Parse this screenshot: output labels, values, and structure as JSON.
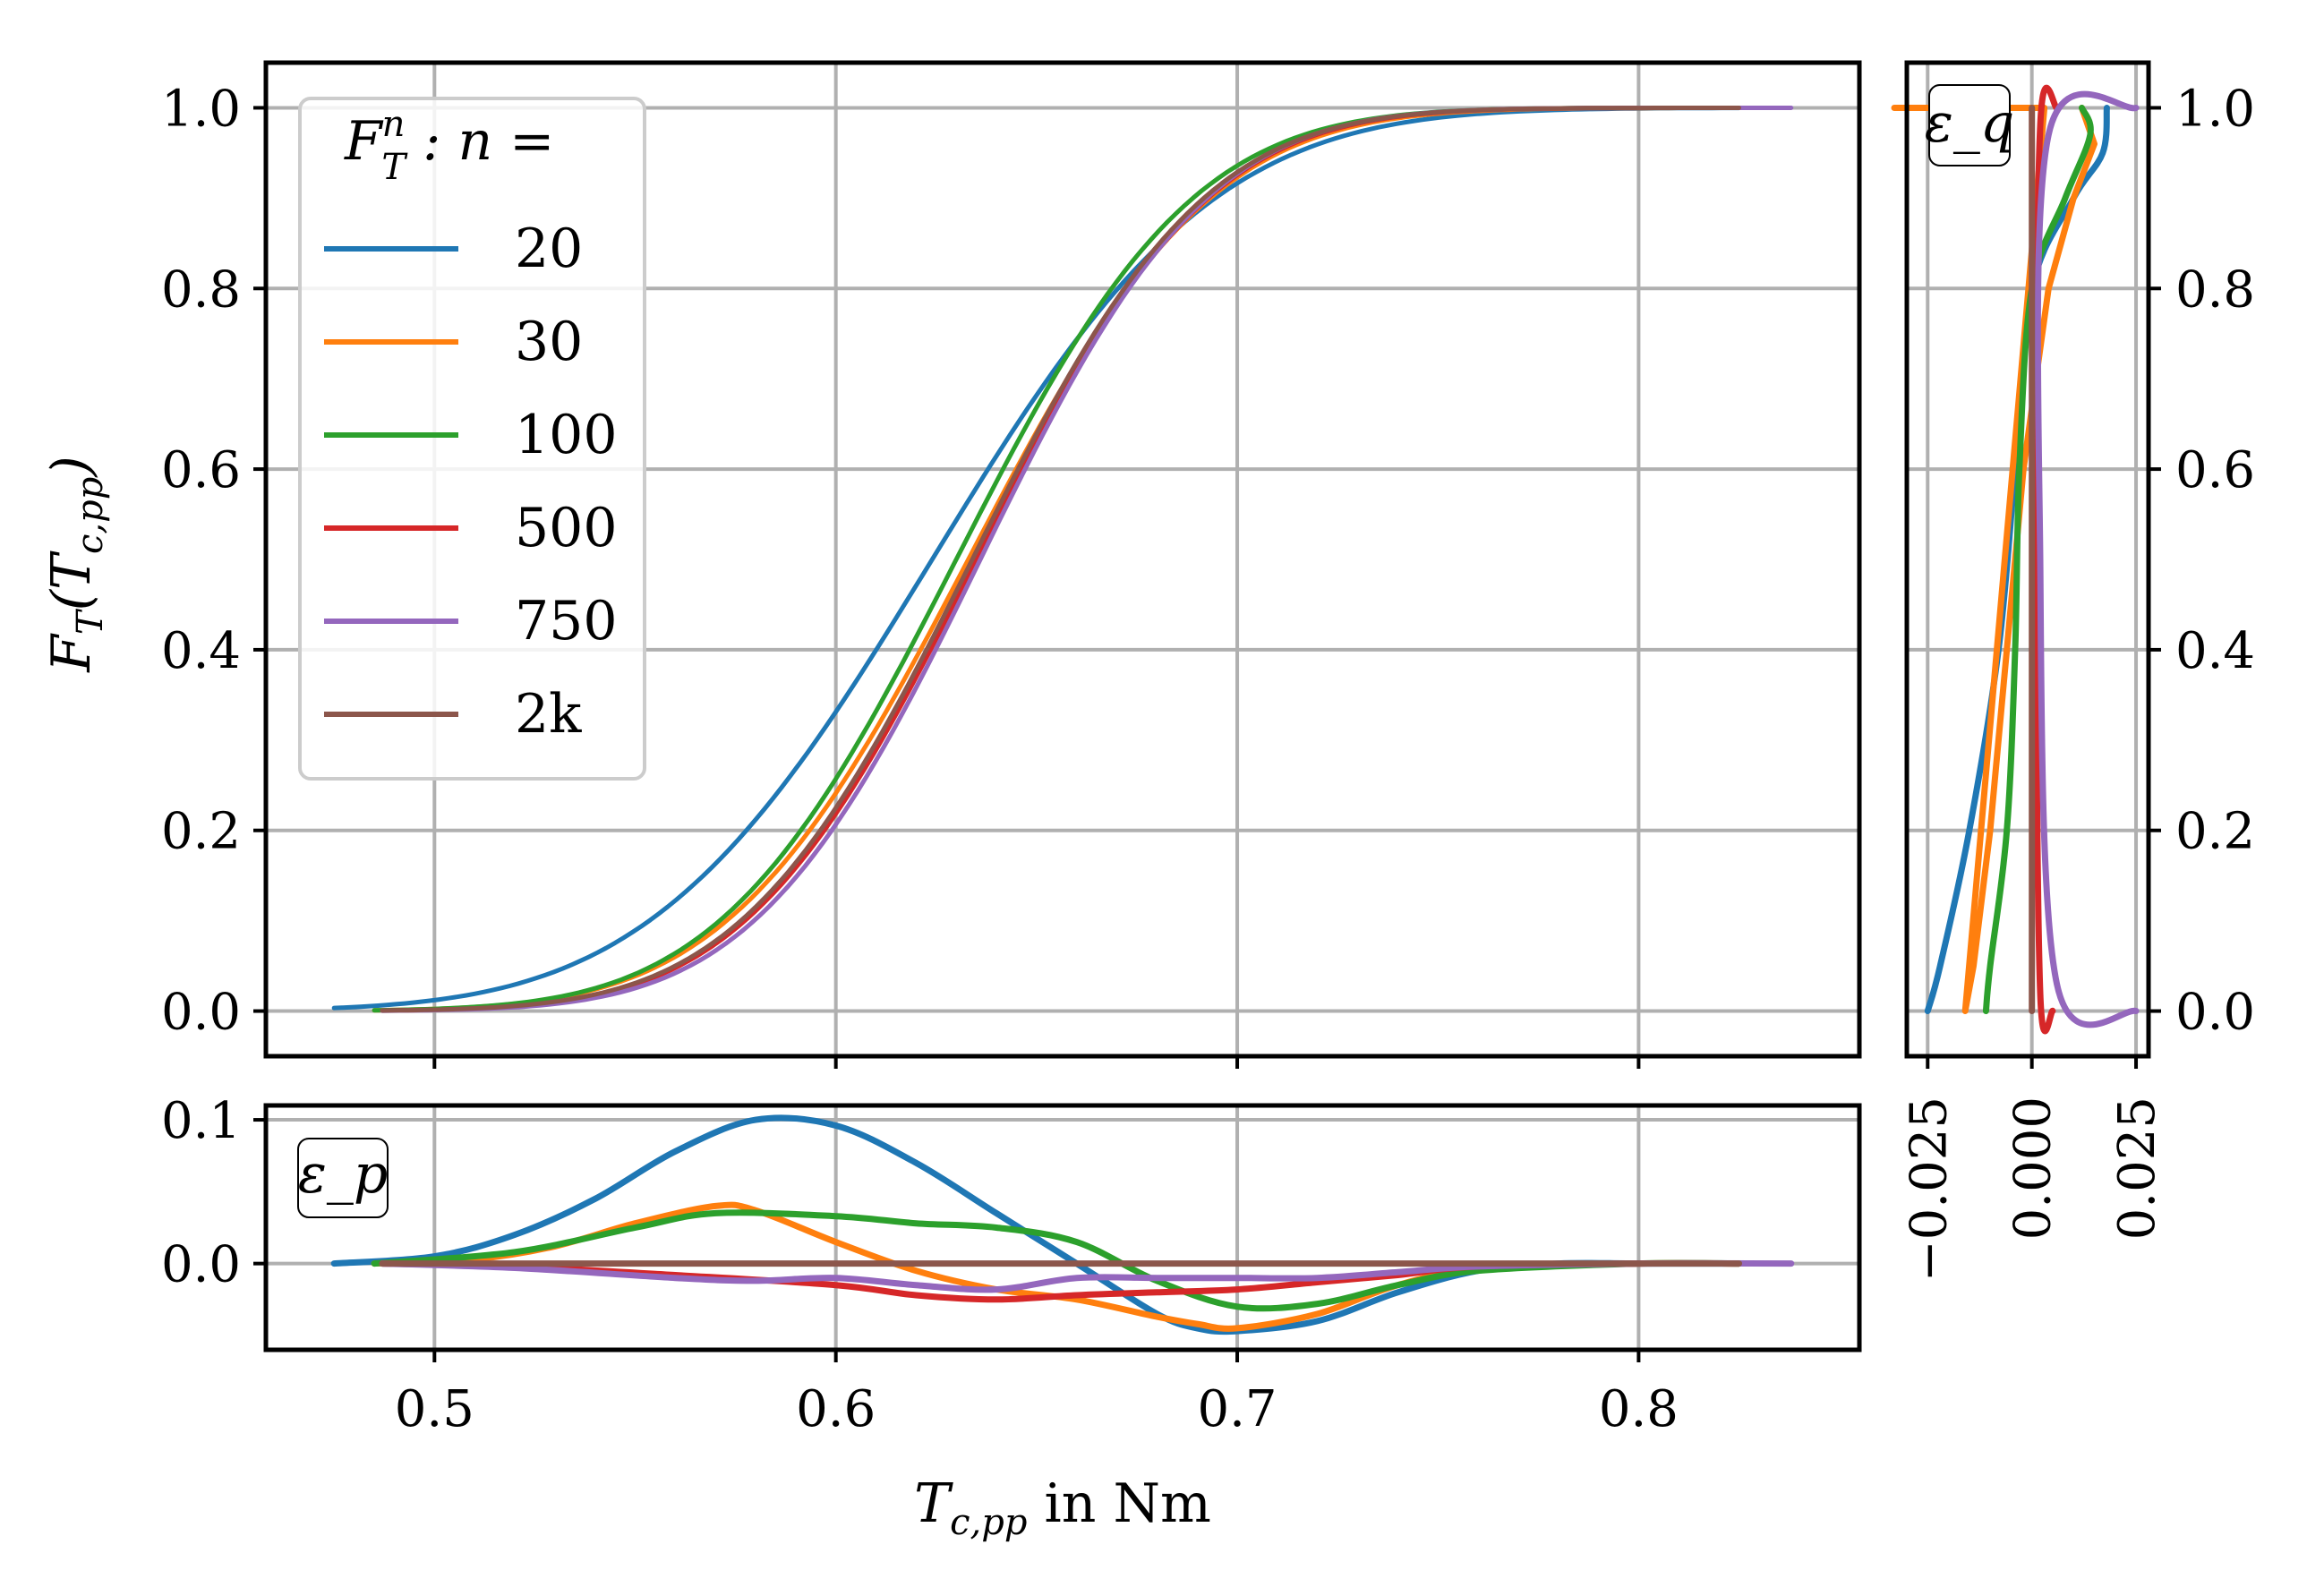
{
  "chart_data": [
    {
      "type": "line",
      "panel": "main",
      "title": "",
      "xlabel": "T_{c,pp} in Nm",
      "ylabel": "F_T(T_{c,pp})",
      "xlim": [
        0.458,
        0.855
      ],
      "ylim": [
        -0.05,
        1.05
      ],
      "xticks": [
        0.5,
        0.6,
        0.7,
        0.8
      ],
      "yticks": [
        0.0,
        0.2,
        0.4,
        0.6,
        0.8,
        1.0
      ],
      "ytick_labels": [
        "0.0",
        "0.2",
        "0.4",
        "0.6",
        "0.8",
        "1.0"
      ],
      "grid": true,
      "legend": {
        "title": "F_T^n : n =",
        "title_parts": {
          "base": "F",
          "sub": "T",
          "sup": "n",
          "rest": " : n ="
        },
        "placement": "upper-left",
        "entries": [
          "20",
          "30",
          "100",
          "500",
          "750",
          "2k"
        ]
      },
      "series": [
        {
          "name": "20",
          "color": "#1f77b4",
          "x_range": [
            0.475,
            0.825
          ],
          "mu": 0.624,
          "sigma": 0.055
        },
        {
          "name": "30",
          "color": "#ff7f0e",
          "x_range": [
            0.485,
            0.825
          ],
          "mu": 0.633,
          "sigma": 0.047
        },
        {
          "name": "100",
          "color": "#2ca02c",
          "x_range": [
            0.485,
            0.825
          ],
          "mu": 0.63,
          "sigma": 0.046
        },
        {
          "name": "500",
          "color": "#d62728",
          "x_range": [
            0.487,
            0.825
          ],
          "mu": 0.635,
          "sigma": 0.045
        },
        {
          "name": "750",
          "color": "#9467bd",
          "x_range": [
            0.487,
            0.838
          ],
          "mu": 0.636,
          "sigma": 0.044
        },
        {
          "name": "2k",
          "color": "#8c564b",
          "x_range": [
            0.487,
            0.825
          ],
          "mu": 0.634,
          "sigma": 0.045
        }
      ]
    },
    {
      "type": "line",
      "panel": "bottom",
      "annotation": "ε_p",
      "xlim": [
        0.458,
        0.855
      ],
      "ylim": [
        -0.06,
        0.11
      ],
      "xticks": [
        0.5,
        0.6,
        0.7,
        0.8
      ],
      "xtick_labels": [
        "0.5",
        "0.6",
        "0.7",
        "0.8"
      ],
      "yticks": [
        0.0,
        0.1
      ],
      "ytick_labels": [
        "0.0",
        "0.1"
      ],
      "grid": true,
      "series": [
        {
          "name": "20",
          "color": "#1f77b4",
          "x": [
            0.475,
            0.5,
            0.52,
            0.54,
            0.56,
            0.58,
            0.6,
            0.62,
            0.64,
            0.66,
            0.68,
            0.69,
            0.7,
            0.72,
            0.74,
            0.76,
            0.78,
            0.8,
            0.825
          ],
          "y": [
            0.0,
            0.005,
            0.02,
            0.045,
            0.078,
            0.1,
            0.096,
            0.07,
            0.035,
            0.0,
            -0.035,
            -0.045,
            -0.047,
            -0.04,
            -0.02,
            -0.005,
            0.0,
            0.0,
            0.0
          ]
        },
        {
          "name": "30",
          "color": "#ff7f0e",
          "x": [
            0.485,
            0.51,
            0.53,
            0.55,
            0.57,
            0.58,
            0.6,
            0.62,
            0.64,
            0.66,
            0.68,
            0.69,
            0.7,
            0.72,
            0.74,
            0.76,
            0.8,
            0.825
          ],
          "y": [
            0.0,
            0.003,
            0.012,
            0.028,
            0.04,
            0.037,
            0.015,
            -0.005,
            -0.018,
            -0.025,
            -0.037,
            -0.042,
            -0.045,
            -0.035,
            -0.015,
            -0.004,
            0.0,
            0.0
          ]
        },
        {
          "name": "100",
          "color": "#2ca02c",
          "x": [
            0.485,
            0.52,
            0.55,
            0.57,
            0.6,
            0.62,
            0.64,
            0.66,
            0.68,
            0.7,
            0.72,
            0.74,
            0.76,
            0.8,
            0.825
          ],
          "y": [
            0.0,
            0.008,
            0.025,
            0.035,
            0.033,
            0.028,
            0.025,
            0.015,
            -0.012,
            -0.03,
            -0.028,
            -0.015,
            -0.005,
            0.0,
            0.0
          ]
        },
        {
          "name": "500",
          "color": "#d62728",
          "x": [
            0.487,
            0.52,
            0.56,
            0.6,
            0.62,
            0.64,
            0.66,
            0.68,
            0.7,
            0.72,
            0.74,
            0.76,
            0.8,
            0.825
          ],
          "y": [
            0.0,
            -0.002,
            -0.008,
            -0.015,
            -0.022,
            -0.025,
            -0.022,
            -0.02,
            -0.018,
            -0.013,
            -0.008,
            -0.002,
            0.0,
            0.0
          ]
        },
        {
          "name": "750",
          "color": "#9467bd",
          "x": [
            0.487,
            0.52,
            0.56,
            0.58,
            0.6,
            0.62,
            0.64,
            0.66,
            0.68,
            0.7,
            0.72,
            0.74,
            0.76,
            0.8,
            0.838
          ],
          "y": [
            0.0,
            -0.003,
            -0.01,
            -0.012,
            -0.01,
            -0.015,
            -0.018,
            -0.01,
            -0.01,
            -0.01,
            -0.01,
            -0.006,
            -0.002,
            0.0,
            0.0
          ]
        },
        {
          "name": "2k",
          "color": "#8c564b",
          "x": [
            0.487,
            0.825
          ],
          "y": [
            0.0,
            0.0
          ]
        }
      ]
    },
    {
      "type": "line",
      "panel": "right",
      "annotation": "ε_q",
      "orientation": "horizontal-error-vs-probability",
      "xlim": [
        -0.03,
        0.028
      ],
      "ylim": [
        -0.05,
        1.05
      ],
      "xticks": [
        -0.025,
        0.0,
        0.025
      ],
      "xtick_labels": [
        "−0.025",
        "0.000",
        "0.025"
      ],
      "yticks": [
        0.0,
        0.2,
        0.4,
        0.6,
        0.8,
        1.0
      ],
      "ytick_labels": [
        "0.0",
        "0.2",
        "0.4",
        "0.6",
        "0.8",
        "1.0"
      ],
      "grid": true,
      "series": [
        {
          "name": "20",
          "color": "#1f77b4",
          "p": [
            0.0,
            0.05,
            0.2,
            0.4,
            0.6,
            0.8,
            0.9,
            0.95,
            1.0
          ],
          "e": [
            -0.025,
            -0.022,
            -0.015,
            -0.008,
            -0.004,
            0.0,
            0.01,
            0.017,
            0.018
          ]
        },
        {
          "name": "30",
          "color": "#ff7f0e",
          "p": [
            1.0,
            1.0,
            0.0,
            0.05,
            0.2,
            0.4,
            0.6,
            0.8,
            0.9,
            0.96,
            1.0
          ],
          "e": [
            -0.033,
            0.003,
            -0.016,
            -0.014,
            -0.01,
            -0.006,
            -0.002,
            0.004,
            0.01,
            0.015,
            0.012
          ]
        },
        {
          "name": "100",
          "color": "#2ca02c",
          "p": [
            0.0,
            0.05,
            0.2,
            0.4,
            0.6,
            0.8,
            0.9,
            0.97,
            1.0
          ],
          "e": [
            -0.011,
            -0.01,
            -0.006,
            -0.004,
            -0.003,
            0.0,
            0.008,
            0.014,
            0.012
          ]
        },
        {
          "name": "500",
          "color": "#d62728",
          "p": [
            0.0,
            0.02,
            0.5,
            0.98,
            1.0
          ],
          "e": [
            0.005,
            0.002,
            0.001,
            0.002,
            0.006
          ]
        },
        {
          "name": "750",
          "color": "#9467bd",
          "p": [
            0.0,
            0.03,
            0.5,
            0.97,
            1.0
          ],
          "e": [
            0.025,
            0.006,
            0.002,
            0.004,
            0.025
          ]
        },
        {
          "name": "2k",
          "color": "#8c564b",
          "p": [
            0.0,
            1.0
          ],
          "e": [
            0.0,
            0.0
          ]
        }
      ]
    }
  ]
}
